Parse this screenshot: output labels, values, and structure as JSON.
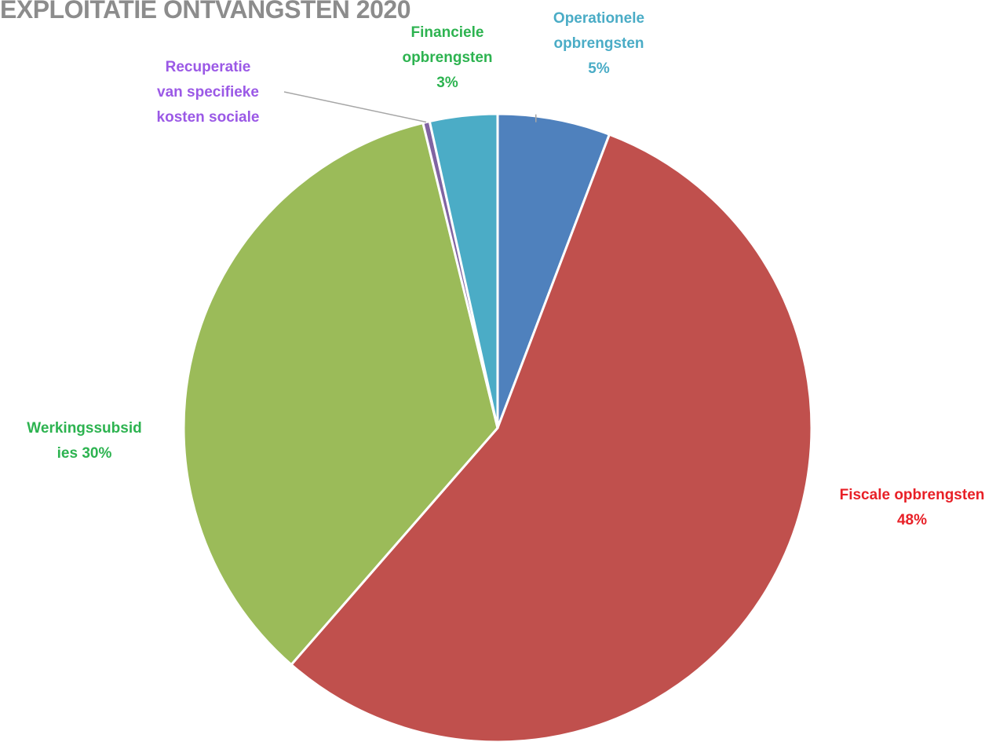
{
  "chart_data": {
    "type": "pie",
    "title": "EXPLOITATIE ONTVANGSTEN 2020",
    "slices": [
      {
        "label_lines": [
          "Operationele",
          "opbrengsten",
          "5%"
        ],
        "value": 5,
        "color": "#4f81bd",
        "label_color": "#4aacc6"
      },
      {
        "label_lines": [
          "Fiscale opbrengsten",
          "48%"
        ],
        "value": 48,
        "color": "#c0504d",
        "label_color": "#e82027"
      },
      {
        "label_lines": [
          "Werkingssubsid",
          "ies 30%"
        ],
        "value": 30,
        "color": "#9bbb59",
        "label_color": "#2db350"
      },
      {
        "label_lines": [
          "Recuperatie",
          "van specifieke",
          "kosten sociale"
        ],
        "value": 0.3,
        "color": "#8064a2",
        "label_color": "#9b59e6"
      },
      {
        "label_lines": [
          "Financiele",
          "opbrengsten",
          "3%"
        ],
        "value": 3,
        "color": "#4bacc6",
        "label_color": "#2db350"
      }
    ],
    "legend": "none"
  }
}
